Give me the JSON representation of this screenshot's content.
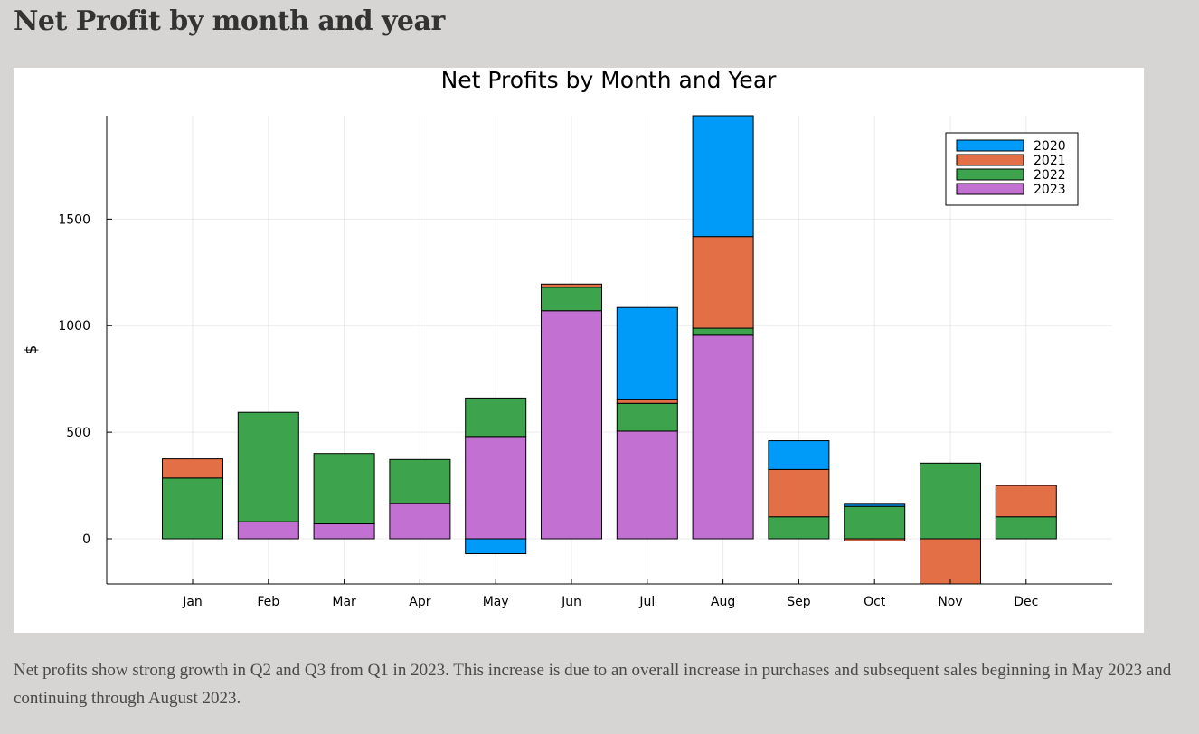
{
  "page": {
    "heading": "Net Profit by month and year",
    "caption": "Net profits show strong growth in Q2 and Q3 from Q1 in 2023. This increase is due to an overall increase in purchases and subsequent sales beginning in May 2023 and continuing through August 2023."
  },
  "chart_data": {
    "type": "bar",
    "stacked": true,
    "title": "Net Profits by Month and Year",
    "xlabel": "",
    "ylabel": "$",
    "ylim": [
      -212,
      1985
    ],
    "yticks": [
      0,
      500,
      1000,
      1500
    ],
    "grid": true,
    "legend_position": "top-right",
    "categories": [
      "Jan",
      "Feb",
      "Mar",
      "Apr",
      "May",
      "Jun",
      "Jul",
      "Aug",
      "Sep",
      "Oct",
      "Nov",
      "Dec"
    ],
    "series": [
      {
        "name": "2023",
        "color": "#c271d2",
        "values": [
          0,
          80,
          70,
          165,
          480,
          1070,
          505,
          955,
          0,
          0,
          0,
          0
        ]
      },
      {
        "name": "2022",
        "color": "#3da44d",
        "values": [
          285,
          513,
          330,
          207,
          180,
          110,
          130,
          33,
          103,
          152,
          355,
          103
        ]
      },
      {
        "name": "2021",
        "color": "#e26f46",
        "values": [
          90,
          0,
          0,
          0,
          0,
          15,
          20,
          430,
          222,
          -10,
          -212,
          147
        ]
      },
      {
        "name": "2020",
        "color": "#009af9",
        "values": [
          0,
          0,
          0,
          0,
          -70,
          0,
          430,
          567,
          135,
          10,
          0,
          0
        ]
      }
    ]
  }
}
